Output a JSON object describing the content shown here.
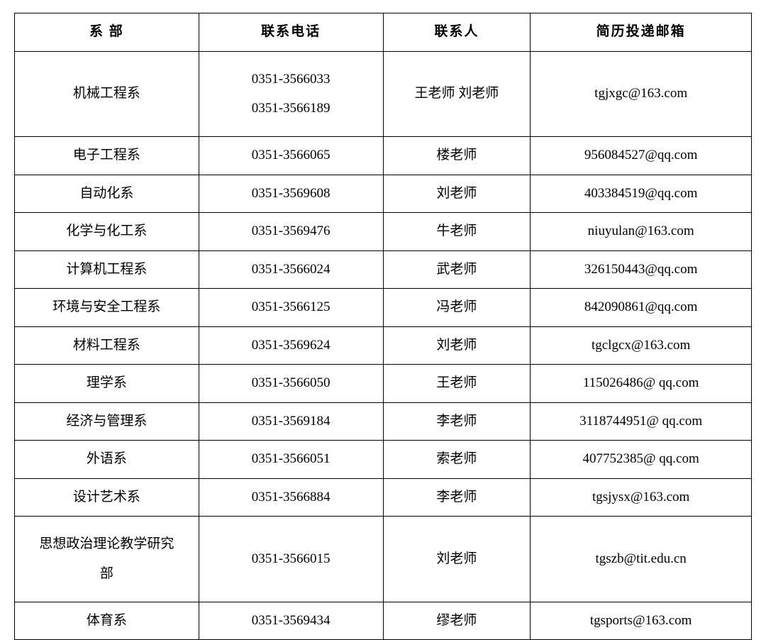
{
  "table": {
    "headers": {
      "department": "系 部",
      "phone": "联系电话",
      "contact": "联系人",
      "email": "简历投递邮箱"
    },
    "rows": [
      {
        "department": "机械工程系",
        "phone": "0351-3566033\n0351-3566189",
        "contact": "王老师 刘老师",
        "email": "tgjxgc@163.com"
      },
      {
        "department": "电子工程系",
        "phone": "0351-3566065",
        "contact": "楼老师",
        "email": "956084527@qq.com"
      },
      {
        "department": "自动化系",
        "phone": "0351-3569608",
        "contact": "刘老师",
        "email": "403384519@qq.com"
      },
      {
        "department": "化学与化工系",
        "phone": "0351-3569476",
        "contact": "牛老师",
        "email": "niuyulan@163.com"
      },
      {
        "department": "计算机工程系",
        "phone": "0351-3566024",
        "contact": "武老师",
        "email": "326150443@qq.com"
      },
      {
        "department": "环境与安全工程系",
        "phone": "0351-3566125",
        "contact": "冯老师",
        "email": "842090861@qq.com"
      },
      {
        "department": "材料工程系",
        "phone": "0351-3569624",
        "contact": "刘老师",
        "email": "tgclgcx@163.com"
      },
      {
        "department": "理学系",
        "phone": "0351-3566050",
        "contact": "王老师",
        "email": "115026486@ qq.com"
      },
      {
        "department": "经济与管理系",
        "phone": "0351-3569184",
        "contact": "李老师",
        "email": "3118744951@ qq.com"
      },
      {
        "department": "外语系",
        "phone": "0351-3566051",
        "contact": "索老师",
        "email": "407752385@ qq.com"
      },
      {
        "department": "设计艺术系",
        "phone": "0351-3566884",
        "contact": "李老师",
        "email": "tgsjysx@163.com"
      },
      {
        "department": "思想政治理论教学研究部",
        "phone": "0351-3566015",
        "contact": "刘老师",
        "email": "tgszb@tit.edu.cn"
      },
      {
        "department": "体育系",
        "phone": "0351-3569434",
        "contact": "缪老师",
        "email": "tgsports@163.com"
      }
    ]
  }
}
